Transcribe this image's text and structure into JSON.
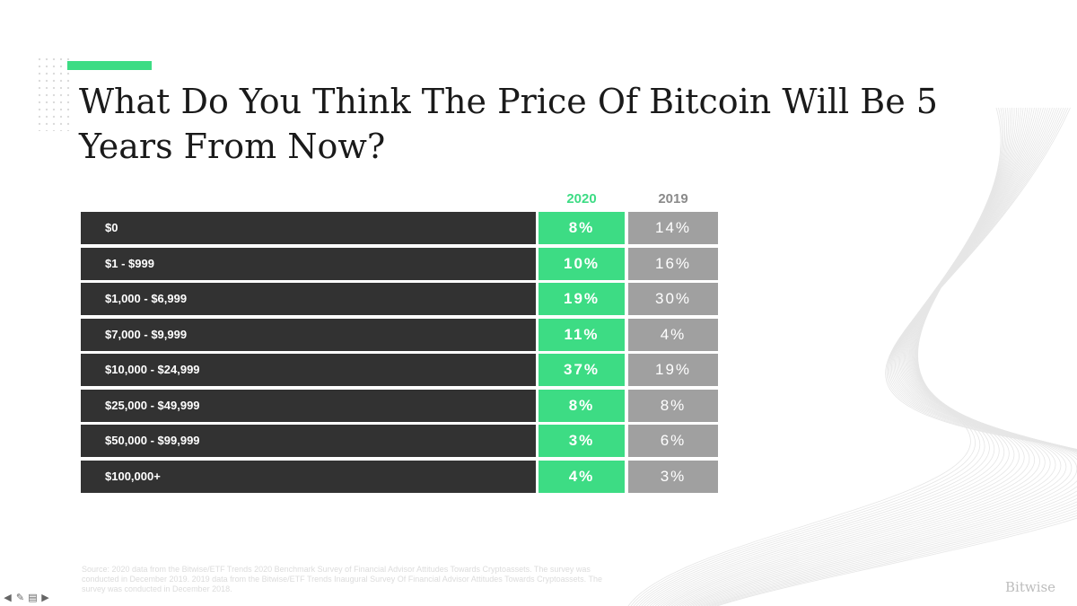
{
  "colors": {
    "accent": "#3ddc84",
    "category_bg": "#323232",
    "value_2020_bg": "#3ddc84",
    "value_2019_bg": "#a0a0a0",
    "header_2019": "#8a8a8a"
  },
  "chart_data": {
    "type": "table",
    "title": "What Do You Think The Price Of Bitcoin Will Be 5 Years From Now?",
    "columns": [
      "2020",
      "2019"
    ],
    "categories": [
      "$0",
      "$1 - $999",
      "$1,000 - $6,999",
      "$7,000 - $9,999",
      "$10,000 - $24,999",
      "$25,000 - $49,999",
      "$50,000 - $99,999",
      "$100,000+"
    ],
    "series": [
      {
        "name": "2020",
        "values": [
          "8%",
          "10%",
          "19%",
          "11%",
          "37%",
          "8%",
          "3%",
          "4%"
        ]
      },
      {
        "name": "2019",
        "values": [
          "14%",
          "16%",
          "30%",
          "4%",
          "19%",
          "8%",
          "6%",
          "3%"
        ]
      }
    ]
  },
  "source_note": "Source: 2020 data from the Bitwise/ETF Trends 2020 Benchmark Survey of Financial Advisor Attitudes Towards Cryptoassets. The survey was conducted in December 2019. 2019 data from the Bitwise/ETF Trends Inaugural Survey Of Financial Advisor Attitudes Towards Cryptoassets. The survey was conducted in December 2018.",
  "brand": "Bitwise",
  "nav_icons": [
    "arrow-left-icon",
    "pen-icon",
    "slide-menu-icon",
    "arrow-right-icon"
  ]
}
